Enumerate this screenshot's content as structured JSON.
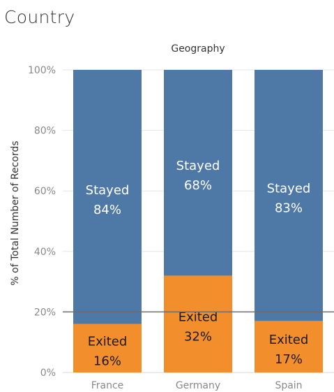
{
  "title": "Country",
  "chart_data": {
    "type": "bar",
    "stacked": true,
    "column_header": "Geography",
    "ylabel": "% of Total Number of Records",
    "ylim": [
      0,
      100
    ],
    "yticks": [
      "0%",
      "20%",
      "40%",
      "60%",
      "80%",
      "100%"
    ],
    "ytick_values": [
      0,
      20,
      40,
      60,
      80,
      100
    ],
    "reference_line": 20,
    "categories": [
      "France",
      "Germany",
      "Spain"
    ],
    "series": [
      {
        "name": "Exited",
        "values": [
          16,
          32,
          17
        ],
        "color": "#f28e2b",
        "labels": [
          "16%",
          "32%",
          "17%"
        ]
      },
      {
        "name": "Stayed",
        "values": [
          84,
          68,
          83
        ],
        "color": "#4e79a7",
        "labels": [
          "84%",
          "68%",
          "83%"
        ]
      }
    ],
    "colors": {
      "grid": "#e6e6e6",
      "tick_text": "#888888",
      "axis_text": "#333333",
      "reference_line": "#6b6b6b",
      "exited_label_text": "#1a1a1a",
      "stayed_label_text": "#ffffff"
    }
  }
}
